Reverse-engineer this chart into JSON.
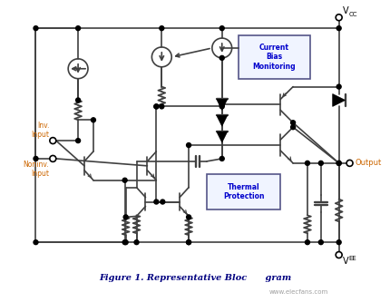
{
  "title": "Figure 1. Representative Bloc      gram",
  "title_color": "#000080",
  "background_color": "#ffffff",
  "line_color": "#404040",
  "label_color": "#cc6600",
  "output_label": "Output",
  "inv_label": "Inv.\nInput",
  "noninv_label": "Noninv.\nInput",
  "box1_label": "Current\nBias\nMonitoring",
  "box2_label": "Thermal\nProtection",
  "watermark": "www.elecfans.com",
  "lw": 1.2
}
